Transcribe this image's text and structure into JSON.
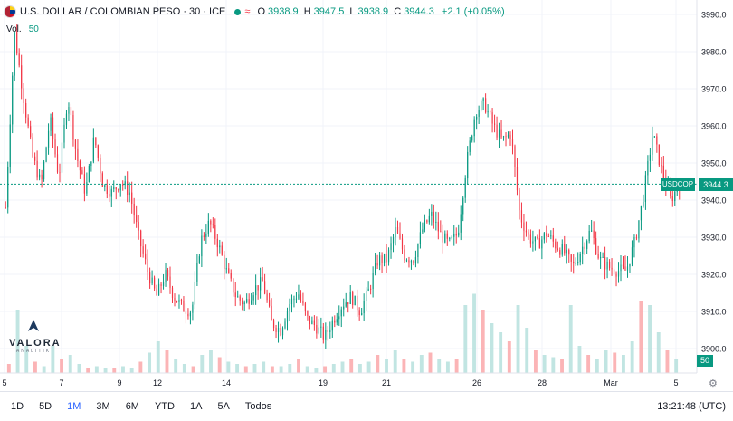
{
  "header": {
    "symbol": "U.S. DOLLAR / COLOMBIAN PESO · 30 · ICE",
    "wave_icon": "≈",
    "o_label": "O",
    "o_value": "3938.9",
    "h_label": "H",
    "h_value": "3947.5",
    "l_label": "L",
    "l_value": "3938.9",
    "c_label": "C",
    "c_value": "3944.3",
    "change": "+2.1 (+0.05%)"
  },
  "volume_legend": {
    "label": "Vol.",
    "value": "50"
  },
  "price_tag": {
    "symbol": "USDCOP",
    "value": "3944.3"
  },
  "volume_tag": "50",
  "logo": {
    "text": "VALORA",
    "sub": "ANALITIK"
  },
  "ranges": [
    "1D",
    "5D",
    "1M",
    "3M",
    "6M",
    "YTD",
    "1A",
    "5A",
    "Todos"
  ],
  "active_range": "1M",
  "clock": "13:21:48 (UTC)",
  "colors": {
    "up": "#089981",
    "down": "#f23645",
    "up_volume": "#b2dfdb",
    "down_volume": "#faa1a4"
  },
  "chart_data": {
    "type": "candlestick",
    "title": "U.S. DOLLAR / COLOMBIAN PESO · 30 · ICE",
    "y_ticks": [
      3900.0,
      3910.0,
      3920.0,
      3930.0,
      3940.0,
      3950.0,
      3960.0,
      3970.0,
      3980.0,
      3990.0
    ],
    "ylim": [
      3897,
      3993
    ],
    "x_ticks": [
      "5",
      "7",
      "9",
      "12",
      "14",
      "19",
      "21",
      "26",
      "28",
      "Mar",
      "5"
    ],
    "last_price": 3944.3,
    "close_path": [
      [
        0,
        3938
      ],
      [
        0.5,
        3985
      ],
      [
        1,
        3968
      ],
      [
        1.5,
        3952
      ],
      [
        2,
        3944
      ],
      [
        2.5,
        3962
      ],
      [
        3,
        3946
      ],
      [
        3.5,
        3968
      ],
      [
        4,
        3952
      ],
      [
        4.5,
        3942
      ],
      [
        5,
        3957
      ],
      [
        5.5,
        3944
      ],
      [
        6,
        3942
      ],
      [
        6.5,
        3945
      ],
      [
        7,
        3942
      ],
      [
        7.5,
        3930
      ],
      [
        8,
        3921
      ],
      [
        8.5,
        3914
      ],
      [
        9,
        3920
      ],
      [
        9.5,
        3914
      ],
      [
        10,
        3911
      ],
      [
        10.5,
        3910
      ],
      [
        11,
        3929
      ],
      [
        11.5,
        3934
      ],
      [
        12,
        3928
      ],
      [
        12.5,
        3920
      ],
      [
        13,
        3914
      ],
      [
        13.5,
        3912
      ],
      [
        14,
        3916
      ],
      [
        14.5,
        3918
      ],
      [
        15,
        3907
      ],
      [
        15.5,
        3905
      ],
      [
        16,
        3912
      ],
      [
        16.5,
        3915
      ],
      [
        17,
        3908
      ],
      [
        17.5,
        3906
      ],
      [
        18,
        3903
      ],
      [
        18.5,
        3908
      ],
      [
        19,
        3912
      ],
      [
        19.5,
        3914
      ],
      [
        20,
        3910
      ],
      [
        20.5,
        3916
      ],
      [
        21,
        3924
      ],
      [
        21.5,
        3924
      ],
      [
        22,
        3932
      ],
      [
        22.5,
        3925
      ],
      [
        23,
        3924
      ],
      [
        23.5,
        3932
      ],
      [
        24,
        3936
      ],
      [
        24.5,
        3931
      ],
      [
        25,
        3928
      ],
      [
        25.5,
        3931
      ],
      [
        26,
        3950
      ],
      [
        26.5,
        3964
      ],
      [
        27,
        3966
      ],
      [
        27.5,
        3960
      ],
      [
        28,
        3956
      ],
      [
        28.5,
        3958
      ],
      [
        29,
        3936
      ],
      [
        29.5,
        3930
      ],
      [
        30,
        3928
      ],
      [
        30.5,
        3931
      ],
      [
        31,
        3928
      ],
      [
        31.5,
        3926
      ],
      [
        32,
        3922
      ],
      [
        32.5,
        3927
      ],
      [
        33,
        3932
      ],
      [
        33.5,
        3924
      ],
      [
        34,
        3922
      ],
      [
        34.5,
        3921
      ],
      [
        35,
        3921
      ],
      [
        35.5,
        3929
      ],
      [
        36,
        3942
      ],
      [
        36.5,
        3958
      ],
      [
        37,
        3948
      ],
      [
        37.5,
        3940
      ],
      [
        38,
        3944.3
      ]
    ],
    "volume": [
      4,
      28,
      12,
      5,
      3,
      12,
      6,
      8,
      4,
      2,
      3,
      2,
      2,
      3,
      2,
      5,
      9,
      14,
      10,
      6,
      4,
      3,
      8,
      10,
      7,
      5,
      4,
      3,
      4,
      5,
      3,
      3,
      4,
      6,
      3,
      2,
      3,
      4,
      5,
      6,
      4,
      5,
      8,
      6,
      10,
      6,
      5,
      8,
      9,
      6,
      5,
      6,
      30,
      35,
      28,
      22,
      18,
      14,
      30,
      20,
      10,
      8,
      7,
      6,
      30,
      12,
      8,
      6,
      10,
      9,
      8,
      14,
      32,
      30,
      18,
      10,
      6
    ],
    "grid": true
  }
}
